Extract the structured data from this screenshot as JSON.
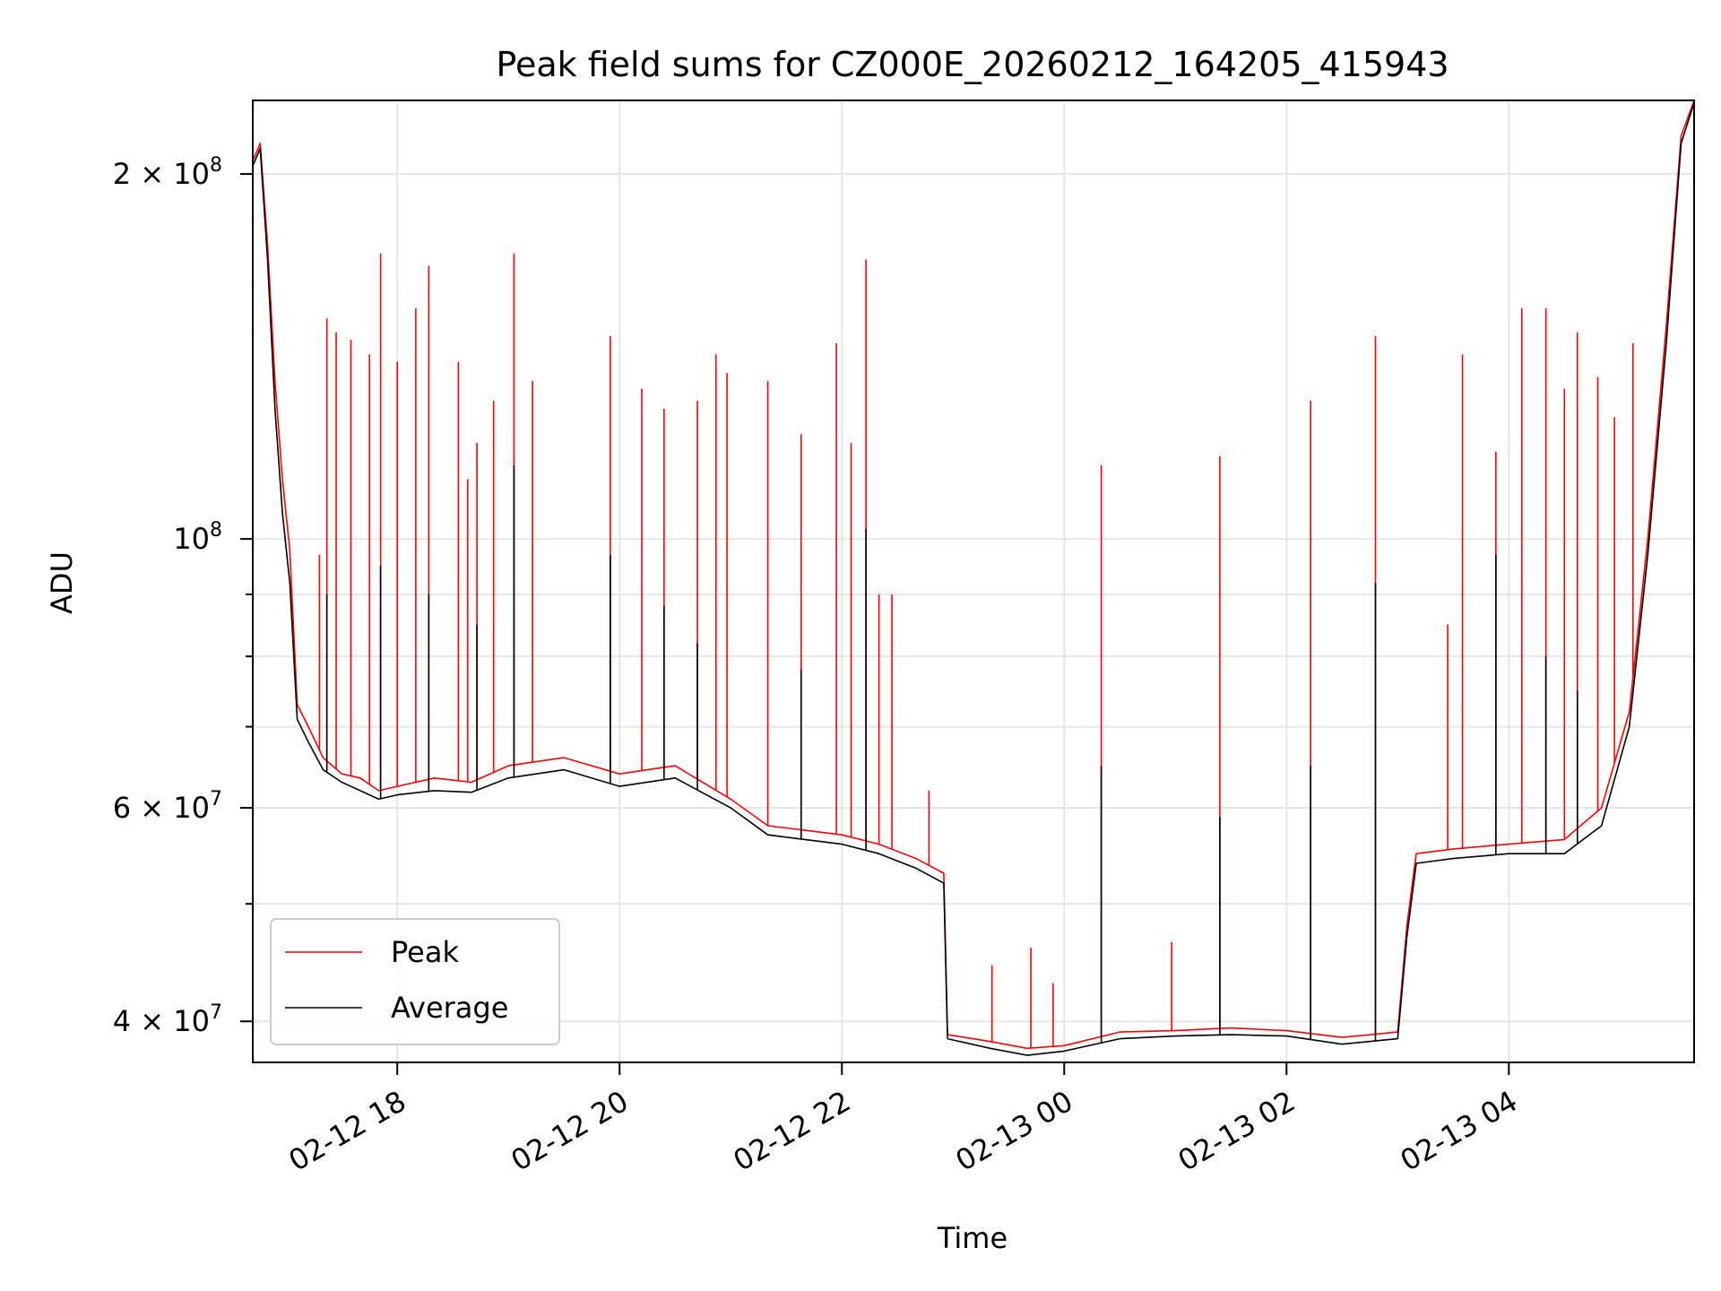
{
  "chart_data": {
    "type": "line",
    "title": "Peak field sums for CZ000E_20260212_164205_415943",
    "xlabel": "Time",
    "ylabel": "ADU",
    "y_scale": "log",
    "ylim": [
      37000000,
      230000000
    ],
    "xlim": [
      "2026-02-12 16:42",
      "2026-02-13 05:40"
    ],
    "x_ticks": [
      {
        "t": "2026-02-12 18:00",
        "label": "02-12 18"
      },
      {
        "t": "2026-02-12 20:00",
        "label": "02-12 20"
      },
      {
        "t": "2026-02-12 22:00",
        "label": "02-12 22"
      },
      {
        "t": "2026-02-13 00:00",
        "label": "02-13 00"
      },
      {
        "t": "2026-02-13 02:00",
        "label": "02-13 02"
      },
      {
        "t": "2026-02-13 04:00",
        "label": "02-13 04"
      }
    ],
    "y_ticks": [
      {
        "value": 40000000,
        "label_base": "4 × 10",
        "label_exp": "7"
      },
      {
        "value": 60000000,
        "label_base": "6 × 10",
        "label_exp": "7"
      },
      {
        "value": 100000000,
        "label_base": "10",
        "label_exp": "8"
      },
      {
        "value": 200000000,
        "label_base": "2 × 10",
        "label_exp": "8"
      }
    ],
    "y_minor_ticks": [
      50000000,
      70000000,
      80000000,
      90000000
    ],
    "grid": true,
    "legend_position": "lower-left",
    "series": [
      {
        "name": "Peak",
        "color": "#ff0000",
        "points": [
          [
            "2026-02-12 16:42",
            205000000
          ],
          [
            "2026-02-12 16:46",
            212000000
          ],
          [
            "2026-02-12 16:50",
            175000000
          ],
          [
            "2026-02-12 16:54",
            135000000
          ],
          [
            "2026-02-12 16:58",
            112000000
          ],
          [
            "2026-02-12 17:02",
            98000000
          ],
          [
            "2026-02-12 17:06",
            73000000
          ],
          [
            "2026-02-12 17:12",
            70000000
          ],
          [
            "2026-02-12 17:20",
            66000000
          ],
          [
            "2026-02-12 17:30",
            64000000
          ],
          [
            "2026-02-12 17:40",
            63500000
          ],
          [
            "2026-02-12 17:50",
            62000000
          ],
          [
            "2026-02-12 18:00",
            62500000
          ],
          [
            "2026-02-12 18:20",
            63500000
          ],
          [
            "2026-02-12 18:40",
            63000000
          ],
          [
            "2026-02-12 19:00",
            65000000
          ],
          [
            "2026-02-12 19:30",
            66000000
          ],
          [
            "2026-02-12 20:00",
            64000000
          ],
          [
            "2026-02-12 20:30",
            65000000
          ],
          [
            "2026-02-12 21:00",
            61000000
          ],
          [
            "2026-02-12 21:20",
            58000000
          ],
          [
            "2026-02-12 21:40",
            57500000
          ],
          [
            "2026-02-12 22:00",
            57000000
          ],
          [
            "2026-02-12 22:20",
            56000000
          ],
          [
            "2026-02-12 22:40",
            54500000
          ],
          [
            "2026-02-12 22:55",
            53000000
          ],
          [
            "2026-02-12 22:57",
            39000000
          ],
          [
            "2026-02-12 23:20",
            38500000
          ],
          [
            "2026-02-12 23:40",
            38000000
          ],
          [
            "2026-02-13 00:00",
            38200000
          ],
          [
            "2026-02-13 00:30",
            39200000
          ],
          [
            "2026-02-13 01:00",
            39300000
          ],
          [
            "2026-02-13 01:30",
            39500000
          ],
          [
            "2026-02-13 02:00",
            39300000
          ],
          [
            "2026-02-13 02:30",
            38800000
          ],
          [
            "2026-02-13 03:00",
            39200000
          ],
          [
            "2026-02-13 03:05",
            48000000
          ],
          [
            "2026-02-13 03:10",
            55000000
          ],
          [
            "2026-02-13 03:30",
            55500000
          ],
          [
            "2026-02-13 04:00",
            56000000
          ],
          [
            "2026-02-13 04:30",
            56500000
          ],
          [
            "2026-02-13 04:50",
            60000000
          ],
          [
            "2026-02-13 05:05",
            72000000
          ],
          [
            "2026-02-13 05:15",
            100000000
          ],
          [
            "2026-02-13 05:25",
            150000000
          ],
          [
            "2026-02-13 05:33",
            215000000
          ],
          [
            "2026-02-13 05:40",
            230000000
          ]
        ],
        "spikes": [
          [
            "2026-02-12 17:18",
            97000000
          ],
          [
            "2026-02-12 17:22",
            152000000
          ],
          [
            "2026-02-12 17:27",
            148000000
          ],
          [
            "2026-02-12 17:35",
            146000000
          ],
          [
            "2026-02-12 17:45",
            142000000
          ],
          [
            "2026-02-12 17:51",
            172000000
          ],
          [
            "2026-02-12 18:00",
            140000000
          ],
          [
            "2026-02-12 18:10",
            155000000
          ],
          [
            "2026-02-12 18:17",
            168000000
          ],
          [
            "2026-02-12 18:33",
            140000000
          ],
          [
            "2026-02-12 18:38",
            112000000
          ],
          [
            "2026-02-12 18:43",
            120000000
          ],
          [
            "2026-02-12 18:52",
            130000000
          ],
          [
            "2026-02-12 19:03",
            172000000
          ],
          [
            "2026-02-12 19:13",
            135000000
          ],
          [
            "2026-02-12 19:55",
            147000000
          ],
          [
            "2026-02-12 20:12",
            133000000
          ],
          [
            "2026-02-12 20:24",
            128000000
          ],
          [
            "2026-02-12 20:42",
            130000000
          ],
          [
            "2026-02-12 20:52",
            142000000
          ],
          [
            "2026-02-12 20:58",
            137000000
          ],
          [
            "2026-02-12 21:20",
            135000000
          ],
          [
            "2026-02-12 21:38",
            122000000
          ],
          [
            "2026-02-12 21:57",
            145000000
          ],
          [
            "2026-02-12 22:05",
            120000000
          ],
          [
            "2026-02-12 22:13",
            170000000
          ],
          [
            "2026-02-12 22:20",
            90000000
          ],
          [
            "2026-02-12 22:27",
            90000000
          ],
          [
            "2026-02-12 22:47",
            62000000
          ],
          [
            "2026-02-12 23:21",
            44500000
          ],
          [
            "2026-02-12 23:42",
            46000000
          ],
          [
            "2026-02-12 23:54",
            43000000
          ],
          [
            "2026-02-13 00:20",
            115000000
          ],
          [
            "2026-02-13 00:58",
            46500000
          ],
          [
            "2026-02-13 01:24",
            117000000
          ],
          [
            "2026-02-13 02:13",
            130000000
          ],
          [
            "2026-02-13 02:48",
            147000000
          ],
          [
            "2026-02-13 03:27",
            85000000
          ],
          [
            "2026-02-13 03:35",
            142000000
          ],
          [
            "2026-02-13 03:53",
            118000000
          ],
          [
            "2026-02-13 04:07",
            155000000
          ],
          [
            "2026-02-13 04:20",
            155000000
          ],
          [
            "2026-02-13 04:30",
            133000000
          ],
          [
            "2026-02-13 04:37",
            148000000
          ],
          [
            "2026-02-13 04:48",
            136000000
          ],
          [
            "2026-02-13 04:57",
            126000000
          ],
          [
            "2026-02-13 05:07",
            145000000
          ]
        ]
      },
      {
        "name": "Average",
        "color": "#000000",
        "points": [
          [
            "2026-02-12 16:42",
            203000000
          ],
          [
            "2026-02-12 16:46",
            210000000
          ],
          [
            "2026-02-12 16:50",
            170000000
          ],
          [
            "2026-02-12 16:54",
            128000000
          ],
          [
            "2026-02-12 16:58",
            105000000
          ],
          [
            "2026-02-12 17:02",
            92000000
          ],
          [
            "2026-02-12 17:06",
            71000000
          ],
          [
            "2026-02-12 17:12",
            68000000
          ],
          [
            "2026-02-12 17:20",
            64500000
          ],
          [
            "2026-02-12 17:30",
            63000000
          ],
          [
            "2026-02-12 17:40",
            62000000
          ],
          [
            "2026-02-12 17:50",
            61000000
          ],
          [
            "2026-02-12 18:00",
            61500000
          ],
          [
            "2026-02-12 18:20",
            62000000
          ],
          [
            "2026-02-12 18:40",
            61800000
          ],
          [
            "2026-02-12 19:00",
            63500000
          ],
          [
            "2026-02-12 19:30",
            64500000
          ],
          [
            "2026-02-12 20:00",
            62500000
          ],
          [
            "2026-02-12 20:30",
            63500000
          ],
          [
            "2026-02-12 21:00",
            60000000
          ],
          [
            "2026-02-12 21:20",
            57000000
          ],
          [
            "2026-02-12 21:40",
            56500000
          ],
          [
            "2026-02-12 22:00",
            56000000
          ],
          [
            "2026-02-12 22:20",
            55000000
          ],
          [
            "2026-02-12 22:40",
            53500000
          ],
          [
            "2026-02-12 22:55",
            52000000
          ],
          [
            "2026-02-12 22:57",
            38700000
          ],
          [
            "2026-02-12 23:20",
            38000000
          ],
          [
            "2026-02-12 23:40",
            37500000
          ],
          [
            "2026-02-13 00:00",
            37800000
          ],
          [
            "2026-02-13 00:30",
            38700000
          ],
          [
            "2026-02-13 01:00",
            38900000
          ],
          [
            "2026-02-13 01:30",
            39000000
          ],
          [
            "2026-02-13 02:00",
            38900000
          ],
          [
            "2026-02-13 02:30",
            38300000
          ],
          [
            "2026-02-13 03:00",
            38700000
          ],
          [
            "2026-02-13 03:05",
            47000000
          ],
          [
            "2026-02-13 03:10",
            54000000
          ],
          [
            "2026-02-13 03:30",
            54500000
          ],
          [
            "2026-02-13 04:00",
            55000000
          ],
          [
            "2026-02-13 04:30",
            55000000
          ],
          [
            "2026-02-13 04:50",
            58000000
          ],
          [
            "2026-02-13 05:05",
            70000000
          ],
          [
            "2026-02-13 05:15",
            97000000
          ],
          [
            "2026-02-13 05:25",
            145000000
          ],
          [
            "2026-02-13 05:33",
            212000000
          ],
          [
            "2026-02-13 05:40",
            229000000
          ]
        ],
        "spikes": [
          [
            "2026-02-12 17:22",
            90000000
          ],
          [
            "2026-02-12 17:51",
            95000000
          ],
          [
            "2026-02-12 18:17",
            90000000
          ],
          [
            "2026-02-12 18:43",
            85000000
          ],
          [
            "2026-02-12 19:03",
            115000000
          ],
          [
            "2026-02-12 19:55",
            97000000
          ],
          [
            "2026-02-12 20:24",
            88000000
          ],
          [
            "2026-02-12 20:42",
            82000000
          ],
          [
            "2026-02-12 21:38",
            78000000
          ],
          [
            "2026-02-12 22:13",
            102000000
          ],
          [
            "2026-02-13 00:20",
            65000000
          ],
          [
            "2026-02-13 01:24",
            59000000
          ],
          [
            "2026-02-13 02:13",
            65000000
          ],
          [
            "2026-02-13 02:48",
            92000000
          ],
          [
            "2026-02-13 03:53",
            97000000
          ],
          [
            "2026-02-13 04:20",
            80000000
          ],
          [
            "2026-02-13 04:37",
            75000000
          ]
        ]
      }
    ]
  }
}
